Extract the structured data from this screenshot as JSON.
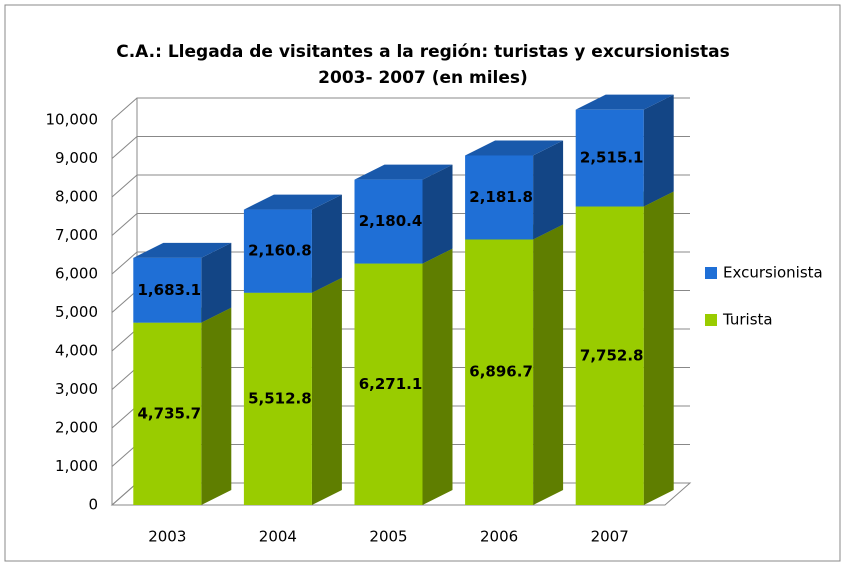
{
  "chart_data": {
    "type": "bar3d_stacked",
    "title": "C.A.: Llegada de visitantes a la región: turistas y excursionistas",
    "subtitle": "2003- 2007 (en miles)",
    "categories": [
      "2003",
      "2004",
      "2005",
      "2006",
      "2007"
    ],
    "series": [
      {
        "name": "Turista",
        "color": "#99cc00",
        "values": [
          4735.7,
          5512.8,
          6271.1,
          6896.7,
          7752.8
        ],
        "value_labels": [
          "4,735.7",
          "5,512.8",
          "6,271.1",
          "6,896.7",
          "7,752.8"
        ]
      },
      {
        "name": "Excursionista",
        "color": "#1f6fd6",
        "values": [
          1683.1,
          2160.8,
          2180.4,
          2181.8,
          2515.1
        ],
        "value_labels": [
          "1,683.1",
          "2,160.8",
          "2,180.4",
          "2,181.8",
          "2,515.1"
        ]
      }
    ],
    "ylim": [
      0,
      10000
    ],
    "yticks": [
      0,
      {
        "value": 1000,
        "label": "1,000"
      },
      {
        "value": 2000,
        "label": "2,000"
      },
      {
        "value": 3000,
        "label": "3,000"
      },
      {
        "value": 4000,
        "label": "4,000"
      },
      {
        "value": 5000,
        "label": "5,000"
      },
      {
        "value": 6000,
        "label": "6,000"
      },
      {
        "value": 7000,
        "label": "7,000"
      },
      {
        "value": 8000,
        "label": "8,000"
      },
      {
        "value": 9000,
        "label": "9,000"
      },
      {
        "value": 10000,
        "label": "10,000"
      }
    ],
    "grid": true,
    "legend": "right"
  }
}
